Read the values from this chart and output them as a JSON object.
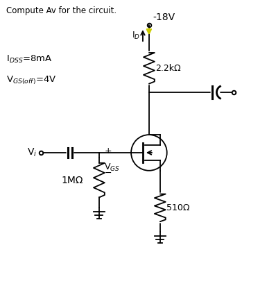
{
  "title": "Compute Av for the circuit.",
  "supply_label": "-18V",
  "idss_label": "I$_{DSS}$=8mA",
  "vgs_off_label": "V$_{GS(off)}$=4V",
  "id_label": "I$_D$",
  "r_drain_label": "2.2kΩ",
  "r_source_label": "510Ω",
  "r_gate_label": "1MΩ",
  "vi_label": "V$_i$",
  "vgs_label": "V$_{GS}$",
  "bg_color": "#ffffff",
  "line_color": "#000000",
  "yellow_color": "#cccc00"
}
